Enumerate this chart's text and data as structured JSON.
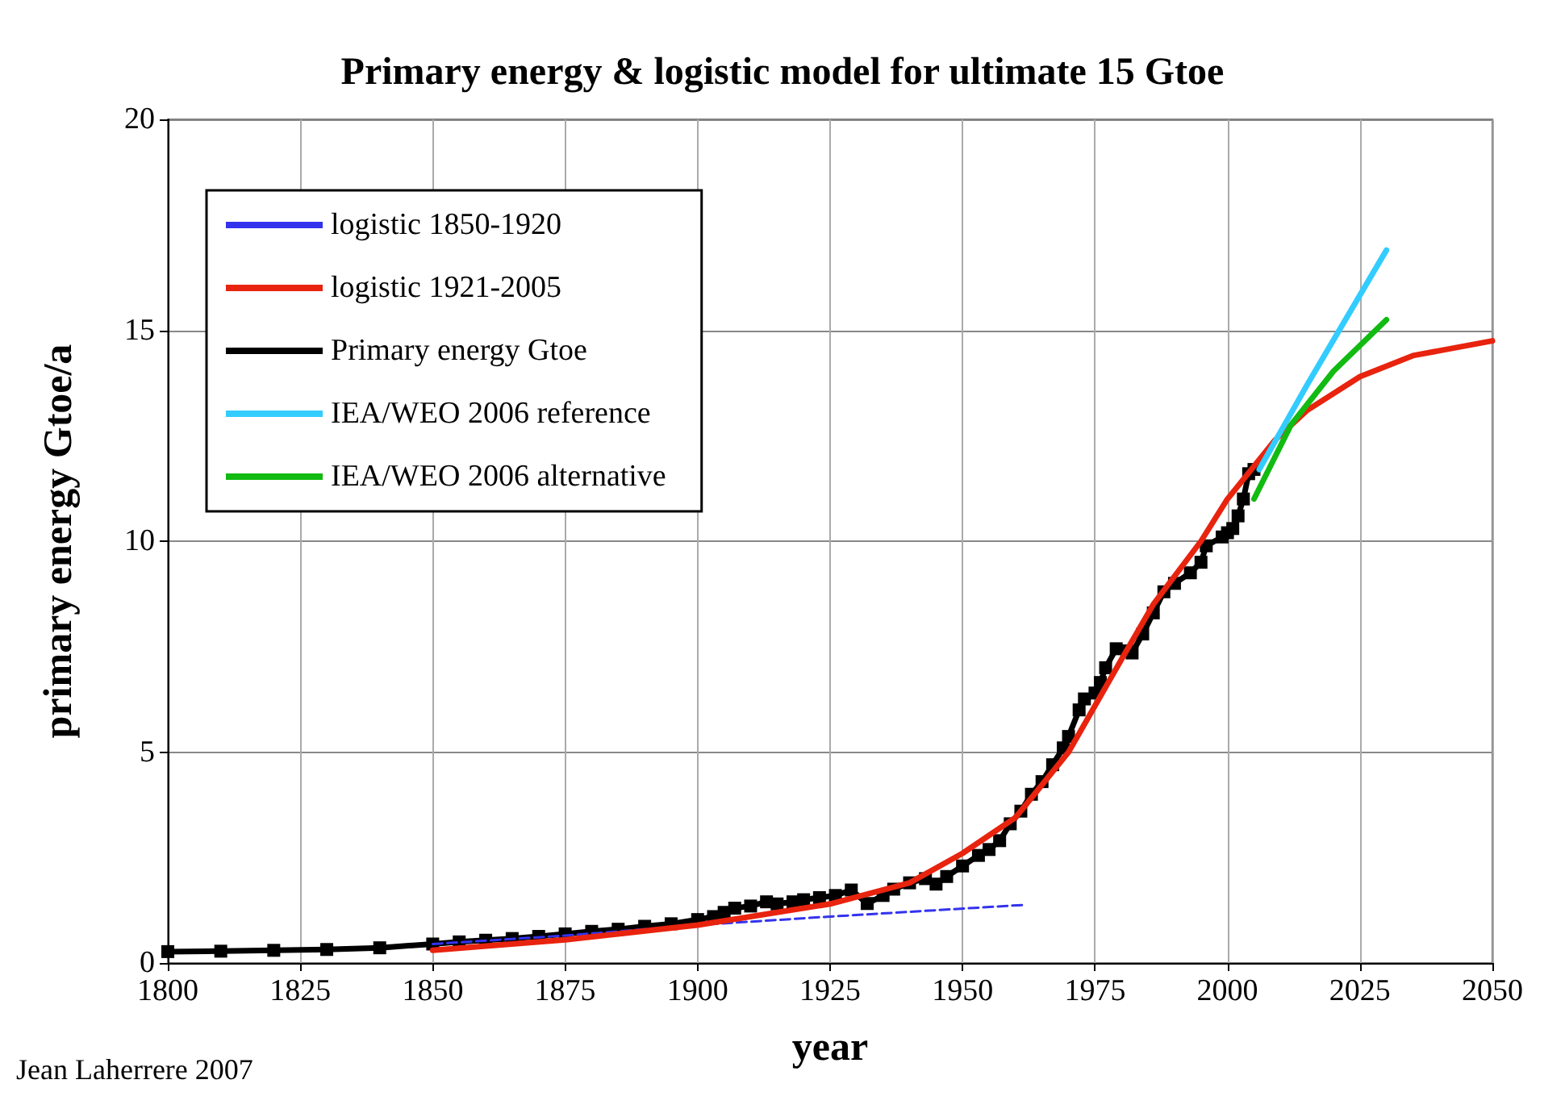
{
  "chart_data": {
    "type": "line",
    "title": "Primary energy & logistic model for ultimate 15 Gtoe",
    "xlabel": "year",
    "ylabel": "primary energy Gtoe/a",
    "annotations": [
      "Jean Laherrere 2007"
    ],
    "xlim": [
      1800,
      2050
    ],
    "xticks": [
      1800,
      1825,
      1850,
      1875,
      1900,
      1925,
      1950,
      1975,
      2000,
      2025,
      2050
    ],
    "ylim": [
      0,
      20
    ],
    "yticks": [
      0,
      5,
      10,
      15,
      20
    ],
    "grid": true,
    "legend": "top left",
    "series": [
      {
        "name": "logistic 1850-1920",
        "color": "#3333ee",
        "line_style": "dashed",
        "marker": "none",
        "x": [
          1850,
          1875,
          1900,
          1925,
          1962
        ],
        "values": [
          0.45,
          0.65,
          0.9,
          1.1,
          1.38
        ]
      },
      {
        "name": "logistic 1921-2005",
        "color": "#e8230e",
        "line_style": "solid",
        "marker": "none",
        "x": [
          1850,
          1875,
          1900,
          1925,
          1940,
          1950,
          1960,
          1970,
          1980,
          1986,
          1995,
          2000,
          2009,
          2015,
          2025,
          2035,
          2050
        ],
        "values": [
          0.3,
          0.55,
          0.9,
          1.4,
          1.9,
          2.6,
          3.45,
          5.0,
          7.2,
          8.5,
          10.0,
          11.0,
          12.4,
          13.1,
          13.9,
          14.4,
          14.75
        ]
      },
      {
        "name": "Primary energy Gtoe",
        "color": "#000000",
        "line_style": "solid",
        "marker": "square",
        "x": [
          1800,
          1810,
          1820,
          1830,
          1840,
          1850,
          1855,
          1860,
          1865,
          1870,
          1875,
          1880,
          1885,
          1890,
          1895,
          1900,
          1903,
          1905,
          1907,
          1910,
          1913,
          1915,
          1918,
          1920,
          1923,
          1926,
          1929,
          1932,
          1935,
          1937,
          1940,
          1943,
          1945,
          1947,
          1950,
          1953,
          1955,
          1957,
          1959,
          1961,
          1963,
          1965,
          1967,
          1969,
          1970,
          1972,
          1973,
          1975,
          1976,
          1977,
          1979,
          1981,
          1982,
          1984,
          1986,
          1988,
          1990,
          1993,
          1995,
          1996,
          1999,
          2000,
          2001,
          2002,
          2003,
          2004,
          2005
        ],
        "values": [
          0.27,
          0.28,
          0.3,
          0.32,
          0.36,
          0.45,
          0.5,
          0.54,
          0.58,
          0.63,
          0.69,
          0.75,
          0.8,
          0.87,
          0.93,
          1.03,
          1.1,
          1.2,
          1.3,
          1.35,
          1.45,
          1.4,
          1.45,
          1.5,
          1.55,
          1.6,
          1.73,
          1.41,
          1.6,
          1.75,
          1.9,
          2.0,
          1.87,
          2.05,
          2.3,
          2.55,
          2.69,
          2.9,
          3.3,
          3.6,
          4.0,
          4.3,
          4.7,
          5.1,
          5.37,
          6.0,
          6.26,
          6.4,
          6.65,
          7.0,
          7.45,
          7.4,
          7.35,
          7.8,
          8.3,
          8.8,
          9.0,
          9.25,
          9.5,
          9.89,
          10.1,
          10.2,
          10.3,
          10.6,
          11.0,
          11.6,
          11.7
        ]
      },
      {
        "name": "IEA/WEO 2006 reference",
        "color": "#33ccff",
        "line_style": "solid",
        "marker": "none",
        "x": [
          2006,
          2015,
          2030
        ],
        "values": [
          11.7,
          13.7,
          16.9
        ]
      },
      {
        "name": "IEA/WEO 2006 alternative",
        "color": "#11bb11",
        "line_style": "solid",
        "marker": "none",
        "x": [
          2005,
          2012,
          2020,
          2030
        ],
        "values": [
          11.0,
          12.76,
          14.03,
          15.25
        ]
      }
    ]
  }
}
